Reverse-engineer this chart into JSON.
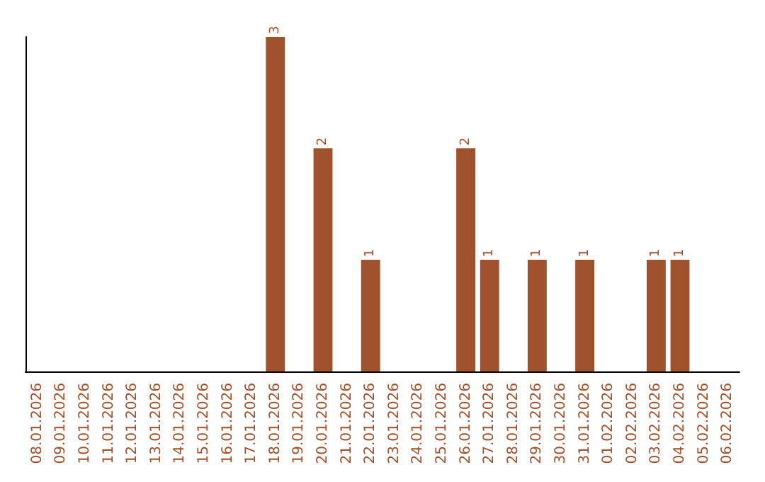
{
  "chart_data": {
    "type": "bar",
    "categories": [
      "08.01.2026",
      "09.01.2026",
      "10.01.2026",
      "11.01.2026",
      "12.01.2026",
      "13.01.2026",
      "14.01.2026",
      "15.01.2026",
      "16.01.2026",
      "17.01.2026",
      "18.01.2026",
      "19.01.2026",
      "20.01.2026",
      "21.01.2026",
      "22.01.2026",
      "23.01.2026",
      "24.01.2026",
      "25.01.2026",
      "26.01.2026",
      "27.01.2026",
      "28.01.2026",
      "29.01.2026",
      "30.01.2026",
      "31.01.2026",
      "01.02.2026",
      "02.02.2026",
      "03.02.2026",
      "04.02.2026",
      "05.02.2026",
      "06.02.2026"
    ],
    "values": [
      0,
      0,
      0,
      0,
      0,
      0,
      0,
      0,
      0,
      0,
      3,
      0,
      2,
      0,
      1,
      0,
      0,
      0,
      2,
      1,
      0,
      1,
      0,
      1,
      0,
      0,
      1,
      1,
      0,
      0
    ],
    "value_labels": [
      null,
      null,
      null,
      null,
      null,
      null,
      null,
      null,
      null,
      null,
      "3",
      null,
      "2",
      null,
      "1",
      null,
      null,
      null,
      "2",
      "1",
      null,
      "1",
      null,
      "1",
      null,
      null,
      "1",
      "1",
      null,
      null
    ],
    "color": "#a0522d",
    "grid": false,
    "tick_labels": "x"
  }
}
